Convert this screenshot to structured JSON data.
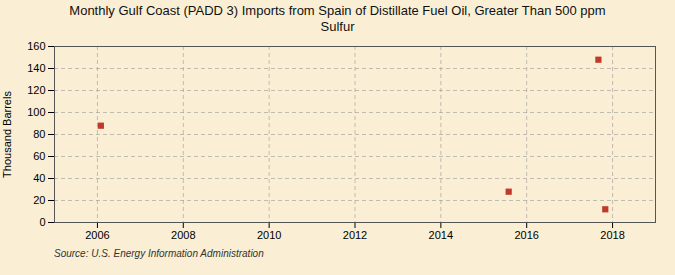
{
  "chart_data": {
    "type": "scatter",
    "title": "Monthly Gulf Coast (PADD 3) Imports from Spain of Distillate Fuel Oil, Greater Than 500 ppm\nSulfur",
    "ylabel": "Thousand Barrels",
    "caption": "Source: U.S. Energy Information Administration",
    "x": [
      2006.08,
      2015.58,
      2017.67,
      2017.83
    ],
    "values": [
      88,
      28,
      148,
      12
    ],
    "color": "#c0392b",
    "marker": "square",
    "xlim": [
      2005.0,
      2019.0
    ],
    "ylim": [
      0,
      160
    ],
    "xticks": [
      2006,
      2008,
      2010,
      2012,
      2014,
      2016,
      2018
    ],
    "yticks": [
      0,
      20,
      40,
      60,
      80,
      100,
      120,
      140,
      160
    ],
    "grid": true
  }
}
